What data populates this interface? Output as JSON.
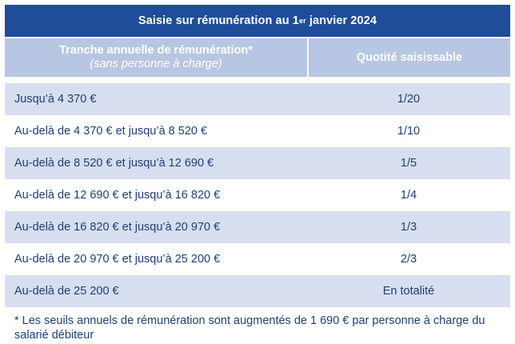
{
  "title": {
    "text_before": "Saisie sur rémunération au 1",
    "superscript": "er",
    "text_after": " janvier 2024"
  },
  "columns": {
    "left_main": "Tranche annuelle de rémunération*",
    "left_sub": "(sans personne à charge)",
    "right": "Quotité saisissable"
  },
  "rows": [
    {
      "range": "Jusqu’à 4 370 €",
      "quota": "1/20"
    },
    {
      "range": "Au-delà de 4 370 € et jusqu’à 8 520 €",
      "quota": "1/10"
    },
    {
      "range": "Au-delà de 8 520 € et jusqu’à 12 690 €",
      "quota": "1/5"
    },
    {
      "range": "Au-delà de 12 690 € et jusqu’à 16 820 €",
      "quota": "1/4"
    },
    {
      "range": "Au-delà de 16 820 € et jusqu’à 20 970 €",
      "quota": "1/3"
    },
    {
      "range": "Au-delà de 20 970 € et jusqu’à 25 200 €",
      "quota": "2/3"
    },
    {
      "range": "Au-delà de 25 200 €",
      "quota": "En totalité"
    }
  ],
  "footnote": "* Les seuils annuels de rémunération sont augmentés de 1 690 € par personne à charge du salarié débiteur",
  "colors": {
    "title_background": "#1f4d99",
    "header_background": "#b7c6e2",
    "shaded_row": "#d7def0",
    "text": "#1f3f7a"
  }
}
